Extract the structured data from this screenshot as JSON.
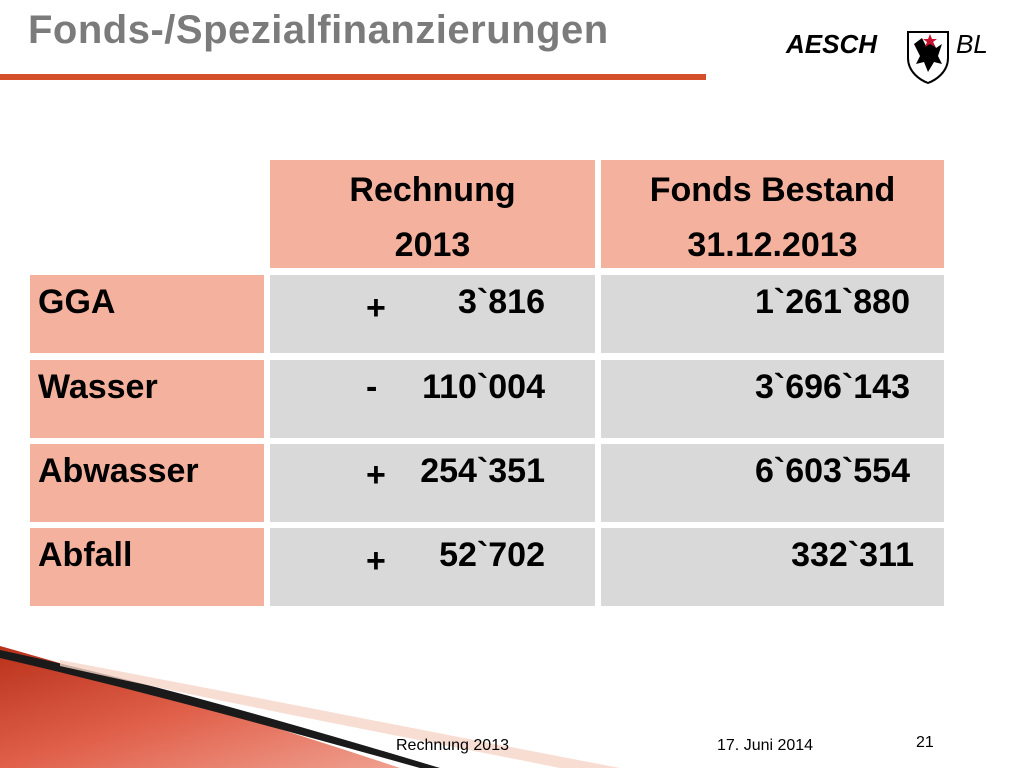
{
  "slide": {
    "title": "Fonds-/Spezialfinanzierungen"
  },
  "logo": {
    "name": "AESCH",
    "canton": "BL",
    "icon": "coat-of-arms-icon"
  },
  "table": {
    "headers": [
      {
        "line1": "Rechnung",
        "line2": "2013"
      },
      {
        "line1": "Fonds Bestand",
        "line2": "31.12.2013"
      }
    ],
    "rows": [
      {
        "label": "GGA",
        "sign": "+",
        "rechnung": "3`816",
        "bestand": "1`261`880"
      },
      {
        "label": "Wasser",
        "sign": "-",
        "rechnung": "110`004",
        "bestand": "3`696`143"
      },
      {
        "label": "Abwasser",
        "sign": "+",
        "rechnung": "254`351",
        "bestand": "6`603`554"
      },
      {
        "label": "Abfall",
        "sign": "+",
        "rechnung": "52`702",
        "bestand": "332`311"
      }
    ]
  },
  "footer": {
    "title": "Rechnung 2013",
    "date": "17. Juni 2014",
    "page": "21"
  },
  "colors": {
    "accent": "#d4502a",
    "header_fill": "#f4b29e",
    "value_fill": "#d9d9d9",
    "title_text": "#7b7b7b"
  }
}
